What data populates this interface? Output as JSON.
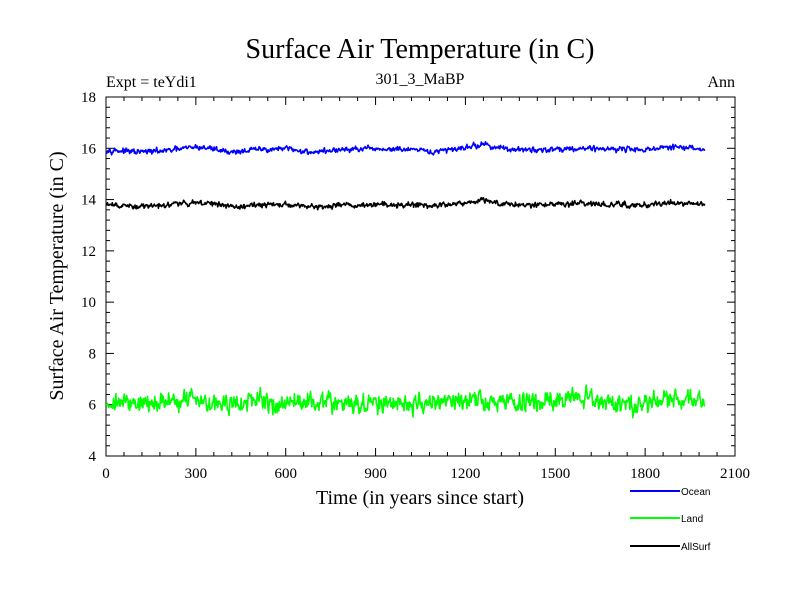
{
  "chart_data": {
    "type": "line",
    "title": "Surface Air Temperature (in C)",
    "subtitle": "301_3_MaBP",
    "experiment_label": "Expt = teYdi1",
    "period_label": "Ann",
    "xlabel": "Time (in years since start)",
    "ylabel": "Surface Air Temperature (in C)",
    "xlim": [
      0,
      2100
    ],
    "ylim": [
      4,
      18
    ],
    "xticks": [
      0,
      300,
      600,
      900,
      1200,
      1500,
      1800,
      2100
    ],
    "yticks": [
      4,
      6,
      8,
      10,
      12,
      14,
      16,
      18
    ],
    "x_range": [
      1,
      2000
    ],
    "series": [
      {
        "name": "Ocean",
        "color": "#0000ff",
        "mean": 16.0,
        "noise_amplitude": 0.1,
        "anchors": [
          [
            0,
            15.95
          ],
          [
            100,
            15.85
          ],
          [
            200,
            15.9
          ],
          [
            300,
            16.05
          ],
          [
            350,
            16.0
          ],
          [
            420,
            15.85
          ],
          [
            500,
            15.95
          ],
          [
            600,
            15.98
          ],
          [
            680,
            15.85
          ],
          [
            800,
            15.95
          ],
          [
            900,
            15.97
          ],
          [
            1000,
            15.95
          ],
          [
            1100,
            15.85
          ],
          [
            1200,
            16.05
          ],
          [
            1260,
            16.15
          ],
          [
            1320,
            16.0
          ],
          [
            1400,
            15.92
          ],
          [
            1500,
            15.97
          ],
          [
            1600,
            16.0
          ],
          [
            1700,
            15.98
          ],
          [
            1800,
            15.95
          ],
          [
            1900,
            16.05
          ],
          [
            2000,
            15.95
          ]
        ]
      },
      {
        "name": "Land",
        "color": "#00ff00",
        "mean": 6.1,
        "noise_amplitude": 0.35,
        "anchors": [
          [
            0,
            6.1
          ],
          [
            150,
            6.05
          ],
          [
            300,
            6.25
          ],
          [
            400,
            6.0
          ],
          [
            500,
            6.1
          ],
          [
            600,
            6.05
          ],
          [
            700,
            6.15
          ],
          [
            800,
            6.05
          ],
          [
            900,
            6.0
          ],
          [
            1000,
            6.05
          ],
          [
            1100,
            6.1
          ],
          [
            1200,
            6.1
          ],
          [
            1300,
            6.15
          ],
          [
            1400,
            6.05
          ],
          [
            1500,
            6.1
          ],
          [
            1550,
            6.3
          ],
          [
            1600,
            6.2
          ],
          [
            1700,
            6.05
          ],
          [
            1800,
            6.1
          ],
          [
            1900,
            6.15
          ],
          [
            2000,
            6.2
          ]
        ]
      },
      {
        "name": "AllSurf",
        "color": "#000000",
        "mean": 13.8,
        "noise_amplitude": 0.1,
        "anchors": [
          [
            0,
            13.8
          ],
          [
            100,
            13.7
          ],
          [
            200,
            13.8
          ],
          [
            300,
            13.9
          ],
          [
            350,
            13.85
          ],
          [
            420,
            13.72
          ],
          [
            500,
            13.78
          ],
          [
            600,
            13.8
          ],
          [
            680,
            13.72
          ],
          [
            800,
            13.8
          ],
          [
            900,
            13.82
          ],
          [
            1000,
            13.8
          ],
          [
            1100,
            13.75
          ],
          [
            1200,
            13.9
          ],
          [
            1260,
            14.0
          ],
          [
            1320,
            13.85
          ],
          [
            1400,
            13.78
          ],
          [
            1500,
            13.82
          ],
          [
            1600,
            13.85
          ],
          [
            1700,
            13.8
          ],
          [
            1800,
            13.78
          ],
          [
            1900,
            13.9
          ],
          [
            2000,
            13.8
          ]
        ]
      }
    ],
    "legend": {
      "position": "bottom-right",
      "items": [
        "Ocean",
        "Land",
        "AllSurf"
      ]
    }
  }
}
